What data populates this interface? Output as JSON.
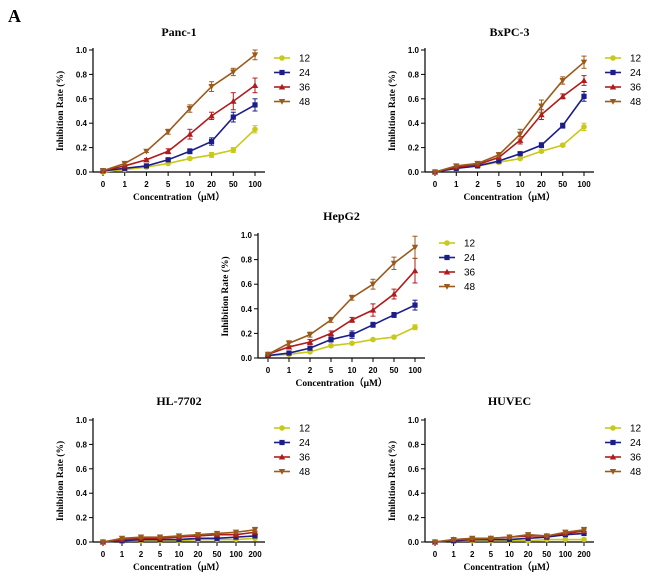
{
  "figure_label": "A",
  "colors": {
    "12": "#c9c91a",
    "24": "#1c1c8a",
    "36": "#b01c1c",
    "48": "#9a5a1c"
  },
  "chart_data": [
    {
      "type": "line",
      "title": "Panc-1",
      "xlabel": "Concentration（μM）",
      "ylabel": "Inhibition Rate (%)",
      "categories": [
        "0",
        "1",
        "2",
        "5",
        "10",
        "20",
        "50",
        "100"
      ],
      "ylim": [
        0,
        1.0
      ],
      "yticks": [
        "0.0",
        "0.2",
        "0.4",
        "0.6",
        "0.8",
        "1.0"
      ],
      "grid": false,
      "legend": "right",
      "series": [
        {
          "name": "12",
          "marker": "circle",
          "values": [
            0.0,
            0.02,
            0.04,
            0.07,
            0.11,
            0.14,
            0.18,
            0.35
          ],
          "err": [
            0,
            0,
            0,
            0,
            0.01,
            0.02,
            0.02,
            0.03
          ]
        },
        {
          "name": "24",
          "marker": "square",
          "values": [
            0.01,
            0.03,
            0.05,
            0.1,
            0.17,
            0.25,
            0.45,
            0.55
          ],
          "err": [
            0,
            0,
            0,
            0.01,
            0.02,
            0.03,
            0.04,
            0.05
          ]
        },
        {
          "name": "36",
          "marker": "triangle-up",
          "values": [
            0.01,
            0.05,
            0.1,
            0.17,
            0.31,
            0.46,
            0.58,
            0.71
          ],
          "err": [
            0,
            0.01,
            0.01,
            0.02,
            0.04,
            0.03,
            0.07,
            0.06
          ]
        },
        {
          "name": "48",
          "marker": "triangle-down",
          "values": [
            0.01,
            0.07,
            0.17,
            0.33,
            0.52,
            0.7,
            0.82,
            0.96
          ],
          "err": [
            0,
            0.01,
            0.01,
            0.02,
            0.03,
            0.04,
            0.03,
            0.04
          ]
        }
      ]
    },
    {
      "type": "line",
      "title": "BxPC-3",
      "xlabel": "Concentration（μM）",
      "ylabel": "Inhibition Rate (%)",
      "categories": [
        "0",
        "1",
        "2",
        "5",
        "10",
        "20",
        "50",
        "100"
      ],
      "ylim": [
        0,
        1.0
      ],
      "yticks": [
        "0.0",
        "0.2",
        "0.4",
        "0.6",
        "0.8",
        "1.0"
      ],
      "grid": false,
      "legend": "right",
      "series": [
        {
          "name": "12",
          "marker": "circle",
          "values": [
            0.0,
            0.03,
            0.05,
            0.08,
            0.11,
            0.17,
            0.22,
            0.37
          ],
          "err": [
            0,
            0,
            0,
            0.01,
            0.01,
            0.01,
            0.01,
            0.03
          ]
        },
        {
          "name": "24",
          "marker": "square",
          "values": [
            0.0,
            0.03,
            0.05,
            0.09,
            0.15,
            0.22,
            0.38,
            0.62
          ],
          "err": [
            0,
            0,
            0,
            0.01,
            0.01,
            0.02,
            0.02,
            0.04
          ]
        },
        {
          "name": "36",
          "marker": "triangle-up",
          "values": [
            0.0,
            0.04,
            0.06,
            0.12,
            0.26,
            0.47,
            0.62,
            0.75
          ],
          "err": [
            0,
            0,
            0.01,
            0.01,
            0.03,
            0.04,
            0.02,
            0.04
          ]
        },
        {
          "name": "48",
          "marker": "triangle-down",
          "values": [
            0.0,
            0.05,
            0.07,
            0.14,
            0.31,
            0.54,
            0.75,
            0.9
          ],
          "err": [
            0,
            0.01,
            0.01,
            0.02,
            0.04,
            0.05,
            0.03,
            0.05
          ]
        }
      ]
    },
    {
      "type": "line",
      "title": "HepG2",
      "xlabel": "Concentration（μM）",
      "ylabel": "Inhibition Rate (%)",
      "categories": [
        "0",
        "1",
        "2",
        "5",
        "10",
        "20",
        "50",
        "100"
      ],
      "ylim": [
        0,
        1.0
      ],
      "yticks": [
        "0.0",
        "0.2",
        "0.4",
        "0.6",
        "0.8",
        "1.0"
      ],
      "grid": false,
      "legend": "right",
      "series": [
        {
          "name": "12",
          "marker": "circle",
          "values": [
            0.02,
            0.03,
            0.05,
            0.1,
            0.12,
            0.15,
            0.17,
            0.25
          ],
          "err": [
            0,
            0,
            0.01,
            0.01,
            0.01,
            0.01,
            0.01,
            0.02
          ]
        },
        {
          "name": "24",
          "marker": "square",
          "values": [
            0.02,
            0.04,
            0.08,
            0.15,
            0.19,
            0.27,
            0.35,
            0.43
          ],
          "err": [
            0,
            0.01,
            0.01,
            0.02,
            0.03,
            0.02,
            0.02,
            0.04
          ]
        },
        {
          "name": "36",
          "marker": "triangle-up",
          "values": [
            0.03,
            0.09,
            0.13,
            0.2,
            0.31,
            0.39,
            0.52,
            0.71
          ],
          "err": [
            0,
            0.01,
            0.02,
            0.02,
            0.02,
            0.05,
            0.04,
            0.1
          ]
        },
        {
          "name": "48",
          "marker": "triangle-down",
          "values": [
            0.03,
            0.12,
            0.19,
            0.31,
            0.49,
            0.6,
            0.77,
            0.9
          ],
          "err": [
            0,
            0.02,
            0.02,
            0.02,
            0.02,
            0.04,
            0.05,
            0.09
          ]
        }
      ]
    },
    {
      "type": "line",
      "title": "HL-7702",
      "xlabel": "Concentration（μM）",
      "ylabel": "Inhibition Rate (%)",
      "categories": [
        "0",
        "1",
        "2",
        "5",
        "10",
        "20",
        "50",
        "100",
        "200"
      ],
      "ylim": [
        0,
        1.0
      ],
      "yticks": [
        "0.0",
        "0.2",
        "0.4",
        "0.6",
        "0.8",
        "1.0"
      ],
      "grid": false,
      "legend": "right",
      "series": [
        {
          "name": "12",
          "marker": "circle",
          "values": [
            0.0,
            0.01,
            0.01,
            0.01,
            0.01,
            0.02,
            0.02,
            0.02,
            0.03
          ],
          "err": [
            0,
            0,
            0,
            0,
            0,
            0,
            0,
            0,
            0.01
          ]
        },
        {
          "name": "24",
          "marker": "square",
          "values": [
            0.0,
            0.01,
            0.02,
            0.02,
            0.02,
            0.03,
            0.03,
            0.04,
            0.05
          ],
          "err": [
            0,
            0,
            0,
            0,
            0,
            0,
            0,
            0.01,
            0.01
          ]
        },
        {
          "name": "36",
          "marker": "triangle-up",
          "values": [
            0.0,
            0.02,
            0.03,
            0.03,
            0.04,
            0.05,
            0.06,
            0.06,
            0.08
          ],
          "err": [
            0,
            0,
            0,
            0,
            0.01,
            0.01,
            0.01,
            0.01,
            0.01
          ]
        },
        {
          "name": "48",
          "marker": "triangle-down",
          "values": [
            0.0,
            0.03,
            0.04,
            0.04,
            0.05,
            0.06,
            0.07,
            0.08,
            0.1
          ],
          "err": [
            0,
            0.01,
            0.01,
            0.01,
            0.01,
            0.01,
            0.01,
            0.01,
            0.02
          ]
        }
      ]
    },
    {
      "type": "line",
      "title": "HUVEC",
      "xlabel": "Concentration（μM）",
      "ylabel": "Inhibition Rate (%)",
      "categories": [
        "0",
        "1",
        "2",
        "5",
        "10",
        "20",
        "50",
        "100",
        "200"
      ],
      "ylim": [
        0,
        1.0
      ],
      "yticks": [
        "0.0",
        "0.2",
        "0.4",
        "0.6",
        "0.8",
        "1.0"
      ],
      "grid": false,
      "legend": "right",
      "series": [
        {
          "name": "12",
          "marker": "circle",
          "values": [
            0.0,
            0.01,
            0.01,
            0.01,
            0.01,
            0.01,
            0.02,
            0.02,
            0.02
          ],
          "err": [
            0,
            0,
            0,
            0,
            0,
            0,
            0,
            0,
            0.01
          ]
        },
        {
          "name": "24",
          "marker": "square",
          "values": [
            0.0,
            0.01,
            0.02,
            0.02,
            0.02,
            0.03,
            0.04,
            0.06,
            0.07
          ],
          "err": [
            0,
            0,
            0,
            0,
            0,
            0,
            0.01,
            0.01,
            0.01
          ]
        },
        {
          "name": "36",
          "marker": "triangle-up",
          "values": [
            0.0,
            0.02,
            0.02,
            0.03,
            0.04,
            0.05,
            0.05,
            0.07,
            0.09
          ],
          "err": [
            0,
            0,
            0,
            0.01,
            0.01,
            0.01,
            0.01,
            0.01,
            0.01
          ]
        },
        {
          "name": "48",
          "marker": "triangle-down",
          "values": [
            0.0,
            0.02,
            0.03,
            0.03,
            0.04,
            0.06,
            0.05,
            0.08,
            0.1
          ],
          "err": [
            0,
            0.01,
            0.01,
            0.01,
            0.01,
            0.01,
            0.01,
            0.01,
            0.02
          ]
        }
      ]
    }
  ]
}
